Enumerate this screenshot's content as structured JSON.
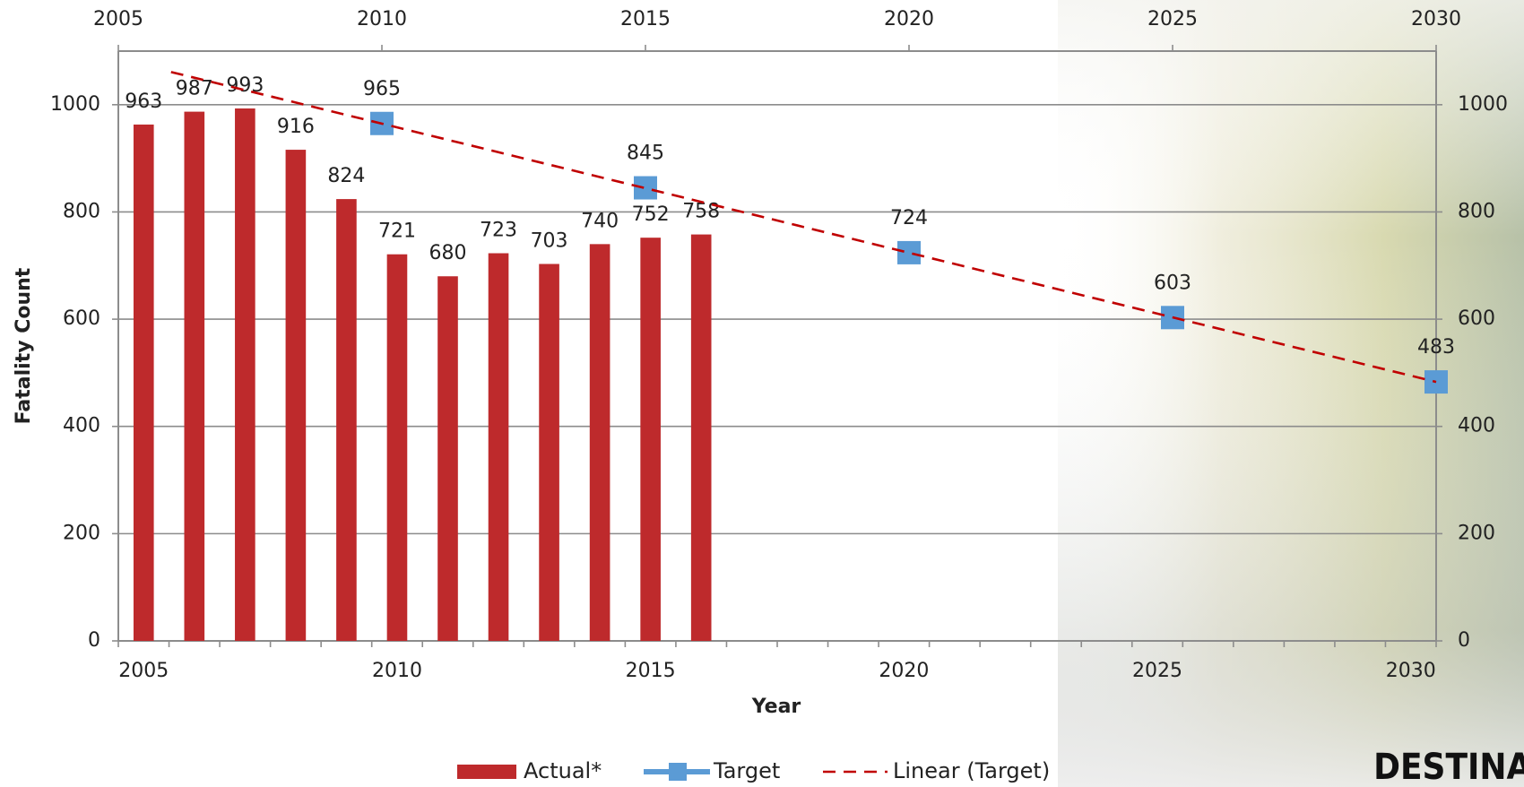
{
  "chart_data": {
    "type": "bar",
    "x_label": "Year",
    "y_label": "Fatality Count",
    "categories": [
      "2005",
      null,
      null,
      null,
      null,
      "2010",
      null,
      null,
      null,
      null,
      "2015",
      null,
      null,
      null,
      null,
      "2020",
      null,
      null,
      null,
      null,
      "2025",
      null,
      null,
      null,
      null,
      "2030"
    ],
    "x2lim": [
      2005,
      2030
    ],
    "x2ticks": [
      2005,
      2010,
      2015,
      2020,
      2025,
      2030
    ],
    "ylim": [
      0,
      1100
    ],
    "yticks": [
      0,
      200,
      400,
      600,
      800,
      1000
    ],
    "y2lim": [
      0,
      1100
    ],
    "y2ticks": [
      0,
      200,
      400,
      600,
      800,
      1000
    ],
    "grid": true,
    "legend": "bottom",
    "series": [
      {
        "name": "Actual*",
        "type": "bar",
        "color": "#be2a2c",
        "values": [
          963,
          987,
          993,
          916,
          824,
          721,
          680,
          723,
          703,
          740,
          752,
          758,
          null,
          null,
          null,
          null,
          null,
          null,
          null,
          null,
          null,
          null,
          null,
          null,
          null,
          null
        ]
      },
      {
        "name": "Target",
        "type": "line",
        "axis": "x2",
        "marker": "square",
        "color": "#5b9bd5",
        "x": [
          2010,
          2015,
          2020,
          2025,
          2030
        ],
        "values": [
          965,
          845,
          724,
          603,
          483
        ]
      },
      {
        "name": "Linear (Target)",
        "type": "line",
        "axis": "x2",
        "dashed": true,
        "color": "#c00000",
        "x": [
          2006,
          2030
        ],
        "values": [
          1061,
          483
        ]
      }
    ],
    "logo_text": "DESTINATION"
  }
}
